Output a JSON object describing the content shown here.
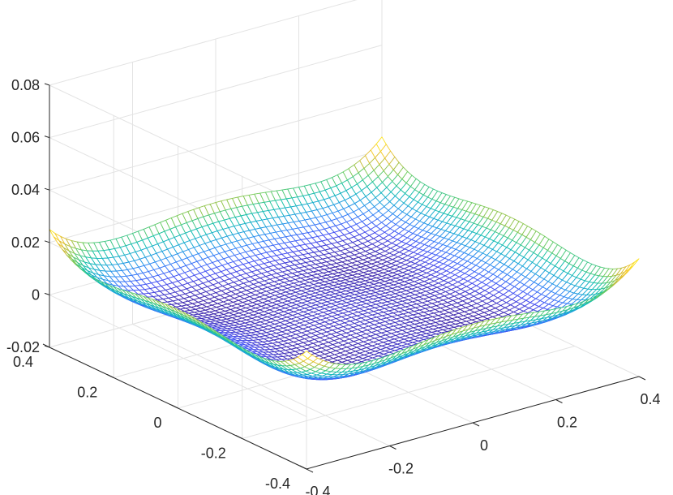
{
  "chart_data": {
    "type": "surface",
    "style": "mesh",
    "colormap": "parula",
    "colormap_stops": [
      "#3e26a8",
      "#4650f3",
      "#3585f8",
      "#1ba9d6",
      "#15c1a8",
      "#6ecc5e",
      "#d8ba34",
      "#fcd22c",
      "#f9fb0e"
    ],
    "function": "z = x^4 + y^4 - 0.4*x^2*y^2 - 0.05*(x^2 + y^2)",
    "grid_resolution": 60,
    "x": {
      "range": [
        -0.4,
        0.4
      ],
      "ticks": [
        -0.4,
        -0.2,
        0,
        0.2,
        0.4
      ],
      "tick_labels": [
        "-0.4",
        "-0.2",
        "0",
        "0.2",
        "0.4"
      ]
    },
    "y": {
      "range": [
        -0.4,
        0.4
      ],
      "ticks": [
        -0.4,
        -0.2,
        0,
        0.2,
        0.4
      ],
      "tick_labels": [
        "-0.4",
        "-0.2",
        "0",
        "0.2",
        "0.4"
      ]
    },
    "z": {
      "range": [
        -0.02,
        0.08
      ],
      "ticks": [
        -0.02,
        0,
        0.02,
        0.04,
        0.06,
        0.08
      ],
      "tick_labels": [
        "-0.02",
        "0",
        "0.02",
        "0.04",
        "0.06",
        "0.08"
      ]
    },
    "title": "",
    "xlabel": "",
    "ylabel": "",
    "zlabel": "",
    "grid": true,
    "box": false
  }
}
